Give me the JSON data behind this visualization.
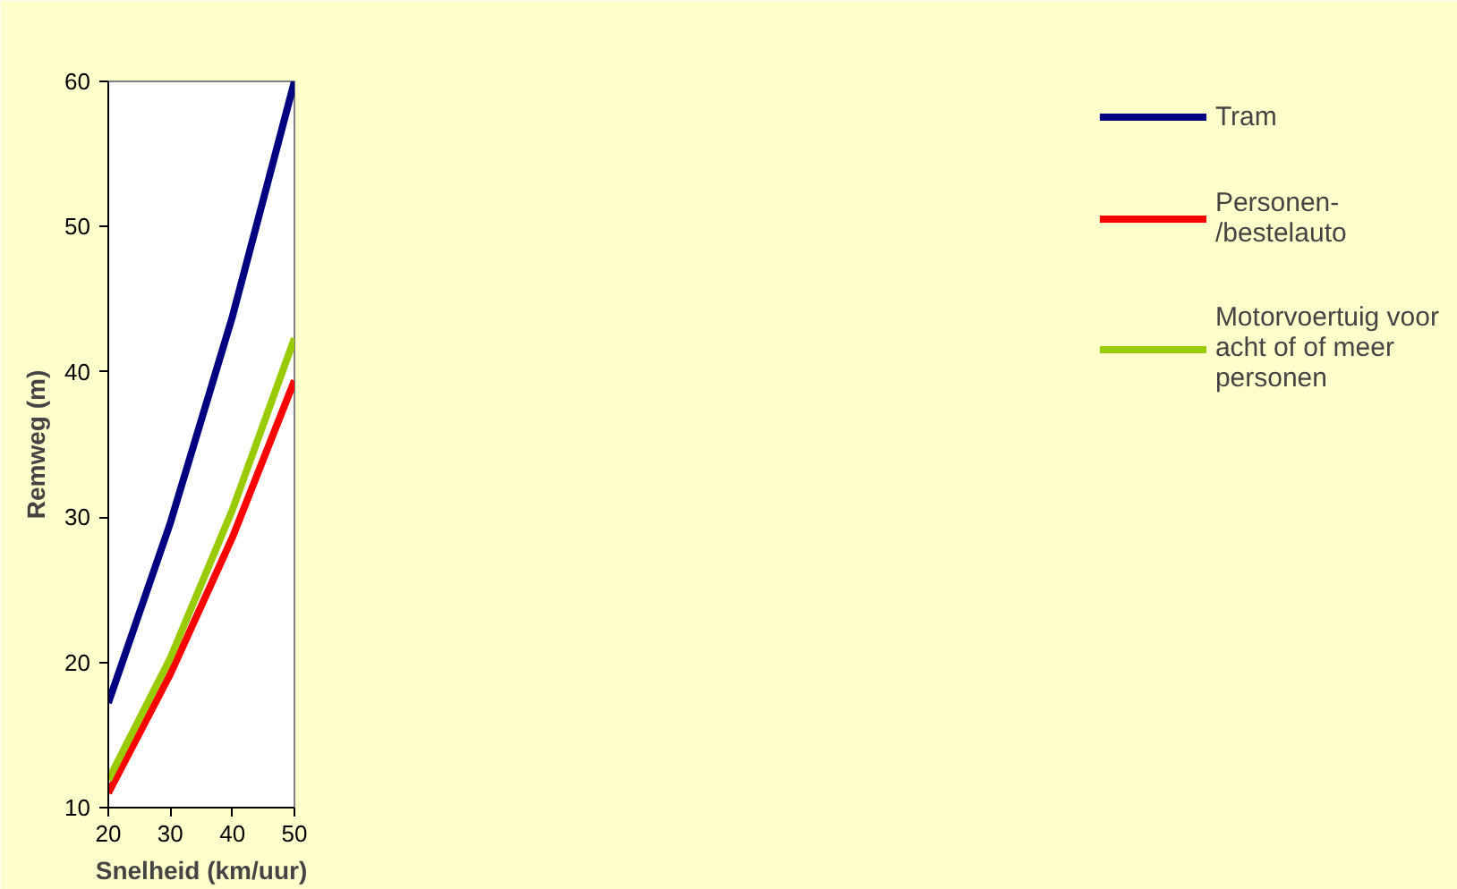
{
  "chart_data": {
    "type": "line",
    "xlabel": "Snelheid (km/uur)",
    "ylabel": "Remweg (m)",
    "x": [
      20,
      30,
      40,
      50
    ],
    "series": [
      {
        "name": "Tram",
        "color": "#000080",
        "values": [
          17.2,
          29.6,
          43.8,
          60
        ]
      },
      {
        "name": "Personen-/bestelauto",
        "color": "#ff0000",
        "values": [
          11.0,
          19.2,
          28.6,
          39.4
        ]
      },
      {
        "name": "Motorvoertuig voor acht of of meer personen",
        "color": "#99cc00",
        "values": [
          11.9,
          20.3,
          30.5,
          42.3
        ]
      }
    ],
    "xlim": [
      20,
      50
    ],
    "xticks": [
      20,
      30,
      40,
      50
    ],
    "ylim": [
      10,
      60
    ],
    "yticks": [
      10,
      20,
      30,
      40,
      50,
      60
    ],
    "grid": false,
    "legend": "right",
    "marker": "none",
    "line_style": "solid"
  }
}
